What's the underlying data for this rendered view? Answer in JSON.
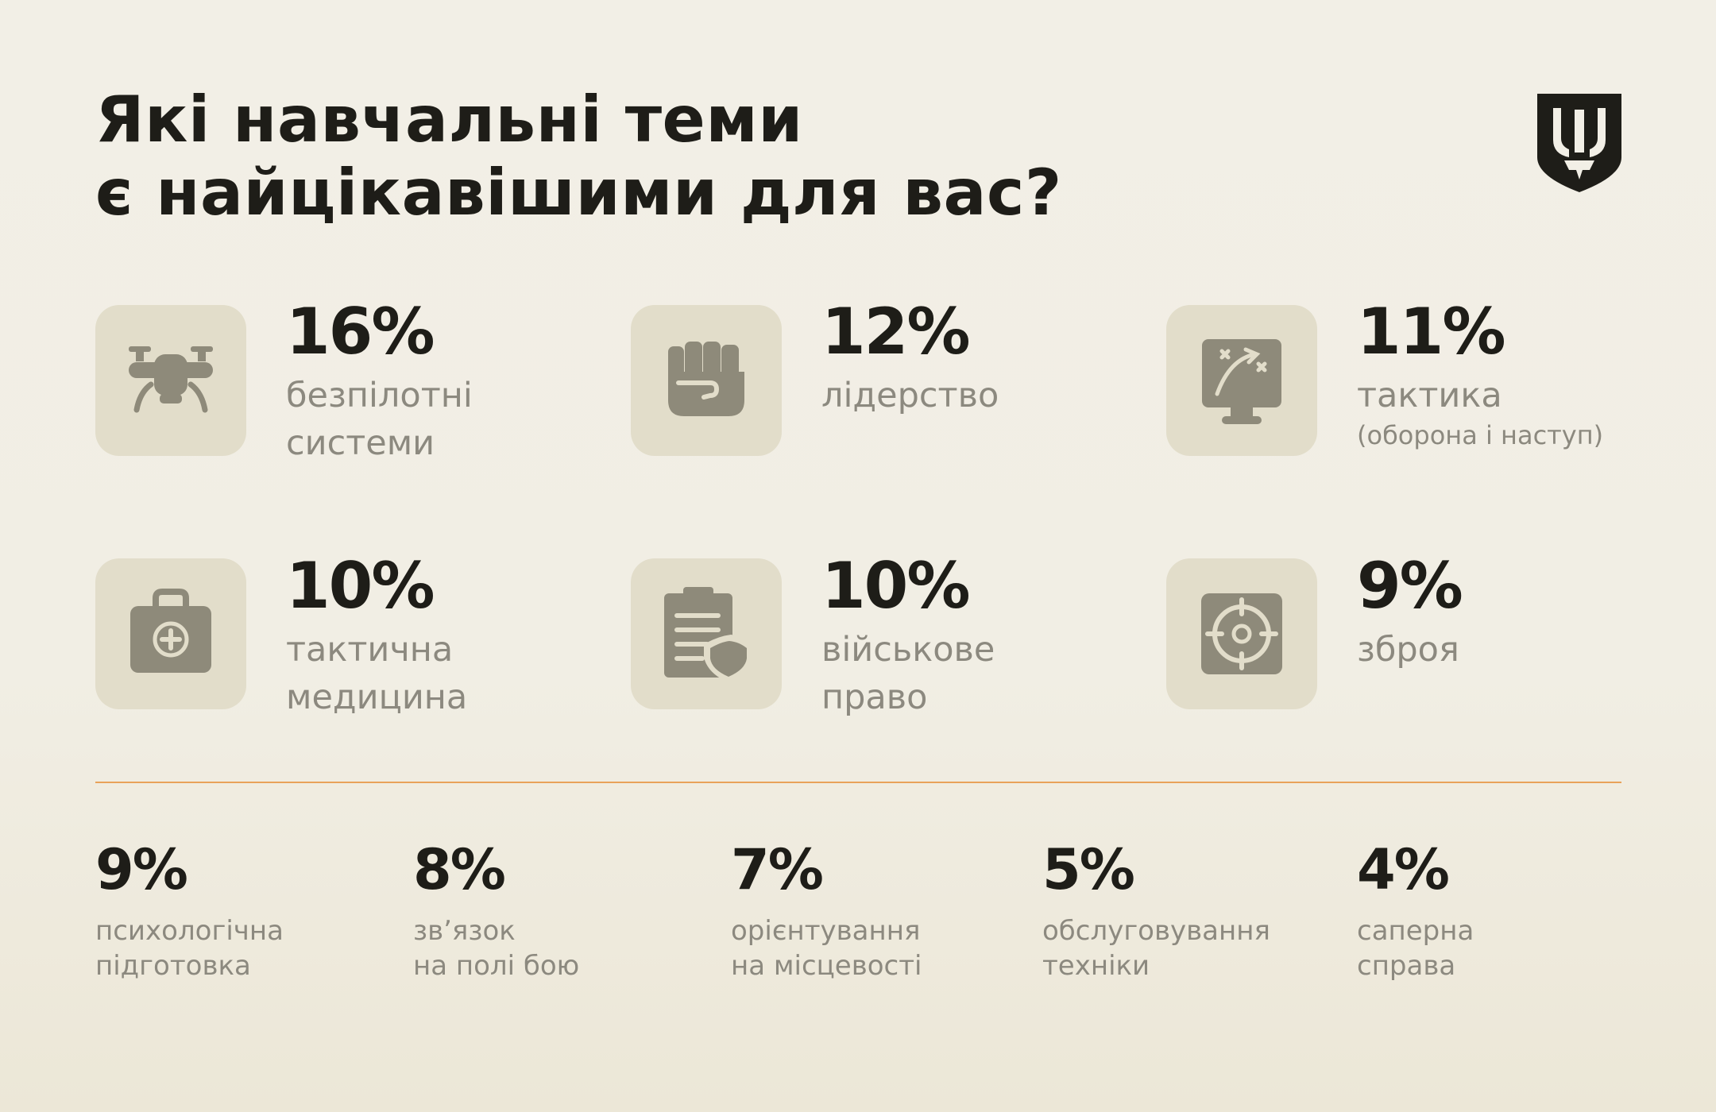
{
  "title": {
    "line1": "Які навчальні теми",
    "line2": "є найцікавішими для вас?"
  },
  "colors": {
    "background": "#f2efe6",
    "tile": "#e2ddca",
    "icon": "#8e8a7a",
    "text": "#1e1d18",
    "label": "#8c897f",
    "divider": "#e9a25a"
  },
  "chart_data": {
    "type": "table",
    "title": "Які навчальні теми є найцікавішими для вас?",
    "featured": [
      {
        "value": "16%",
        "label1": "безпілотні",
        "label2": "системи",
        "icon": "drone-icon"
      },
      {
        "value": "12%",
        "label1": "лідерство",
        "label2": "",
        "icon": "fist-icon"
      },
      {
        "value": "11%",
        "label1": "тактика",
        "label2": "(оборона і наступ)",
        "icon": "tactics-board-icon"
      },
      {
        "value": "10%",
        "label1": "тактична",
        "label2": "медицина",
        "icon": "medical-kit-icon"
      },
      {
        "value": "10%",
        "label1": "військове",
        "label2": "право",
        "icon": "clipboard-shield-icon"
      },
      {
        "value": "9%",
        "label1": "зброя",
        "label2": "",
        "icon": "crosshair-icon"
      }
    ],
    "others": [
      {
        "value": "9%",
        "label1": "психологічна",
        "label2": "підготовка"
      },
      {
        "value": "8%",
        "label1": "зв’язок",
        "label2": "на полі бою"
      },
      {
        "value": "7%",
        "label1": "орієнтування",
        "label2": "на місцевості"
      },
      {
        "value": "5%",
        "label1": "обслуговування",
        "label2": "техніки"
      },
      {
        "value": "4%",
        "label1": "саперна",
        "label2": "справа"
      }
    ]
  }
}
